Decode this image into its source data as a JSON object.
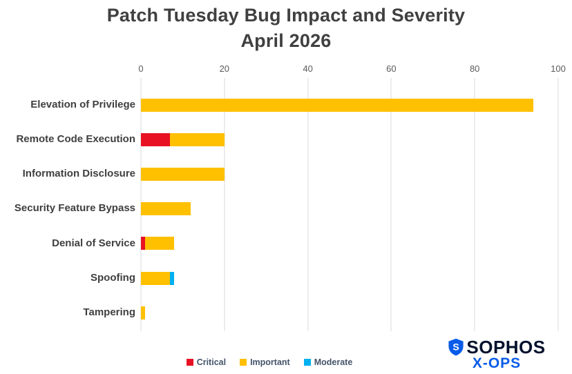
{
  "chart_data": {
    "type": "bar",
    "orientation": "horizontal",
    "stacked": true,
    "title": "Patch Tuesday Bug Impact and Severity",
    "subtitle": "April 2026",
    "categories": [
      "Elevation of Privilege",
      "Remote Code Execution",
      "Information Disclosure",
      "Security Feature Bypass",
      "Denial of Service",
      "Spoofing",
      "Tampering"
    ],
    "series": [
      {
        "name": "Critical",
        "color": "#e81123",
        "values": [
          0,
          7,
          0,
          0,
          1,
          0,
          0
        ]
      },
      {
        "name": "Important",
        "color": "#ffc000",
        "values": [
          94,
          13,
          20,
          12,
          7,
          7,
          1
        ]
      },
      {
        "name": "Moderate",
        "color": "#00b0f0",
        "values": [
          0,
          0,
          0,
          0,
          0,
          1,
          0
        ]
      }
    ],
    "xlim": [
      0,
      100
    ],
    "xticks": [
      0,
      20,
      40,
      60,
      80,
      100
    ],
    "grid": "vertical",
    "legend_position": "bottom",
    "legend_items": [
      "Critical",
      "Important",
      "Moderate"
    ]
  },
  "logo": {
    "brand": "SOPHOS",
    "sub": "X-OPS",
    "brand_color": "#04122e",
    "accent_color": "#0a5ce8",
    "icon": "sophos-shield-icon"
  }
}
